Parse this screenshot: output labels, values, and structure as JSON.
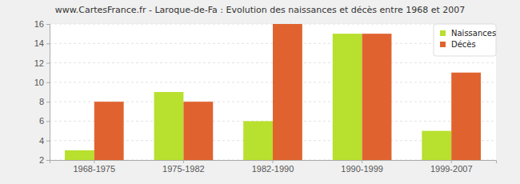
{
  "chart_data": {
    "type": "bar",
    "title": "www.CartesFrance.fr - Laroque-de-Fa : Evolution des naissances et décès entre 1968 et 2007",
    "categories": [
      "1968-1975",
      "1975-1982",
      "1982-1990",
      "1990-1999",
      "1999-2007"
    ],
    "series": [
      {
        "name": "Naissances",
        "color": "#b8e02e",
        "values": [
          3,
          9,
          6,
          15,
          5
        ]
      },
      {
        "name": "Décès",
        "color": "#e0632f",
        "values": [
          8,
          8,
          16,
          15,
          11
        ]
      }
    ],
    "ylim": [
      2,
      16
    ],
    "yticks": [
      2,
      4,
      6,
      8,
      10,
      12,
      14,
      16
    ],
    "grid": true,
    "legend": "top-right"
  }
}
